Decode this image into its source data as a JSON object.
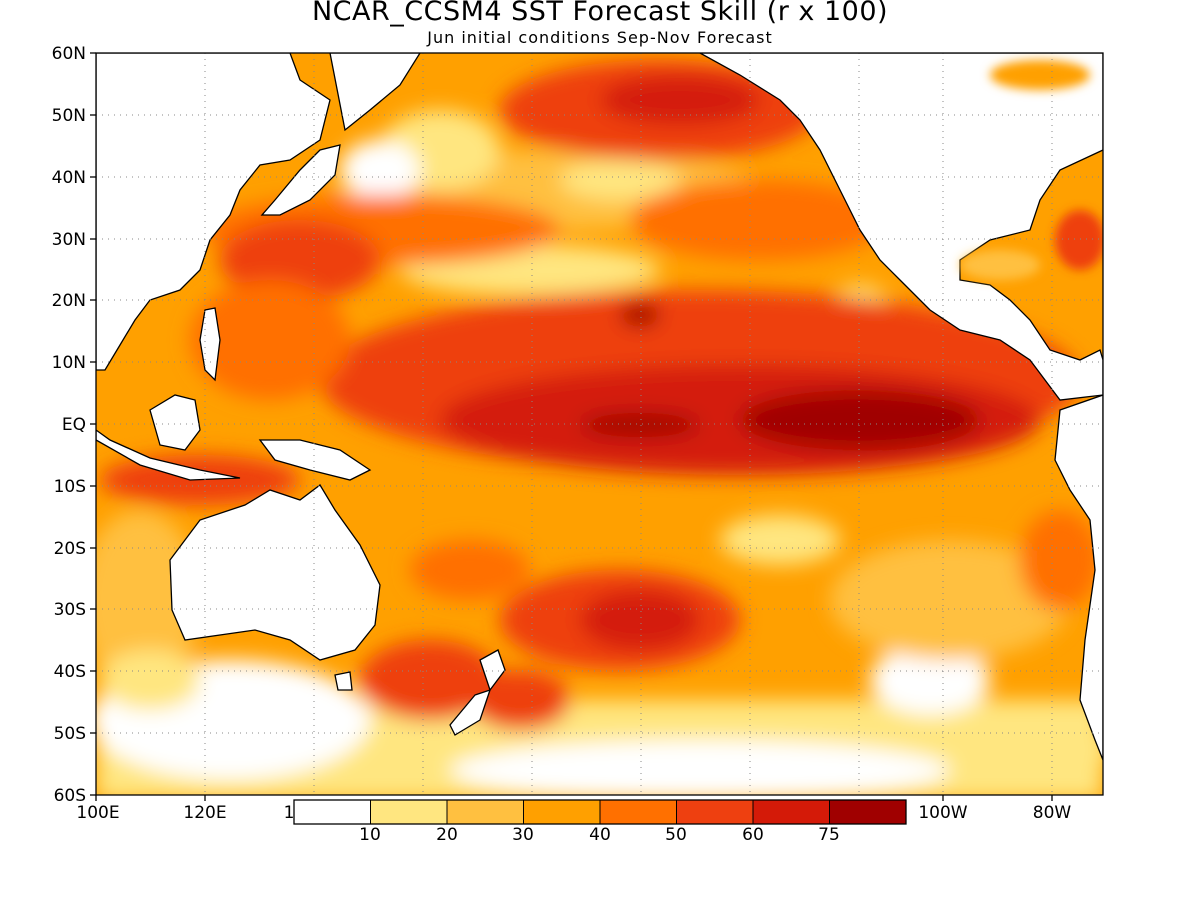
{
  "title": "NCAR_CCSM4 SST Forecast Skill (r x 100)",
  "subtitle": "Jun initial conditions  Sep-Nov Forecast",
  "map": {
    "lon_range": [
      100,
      285
    ],
    "lat_range": [
      -60,
      60
    ],
    "lat_ticks": [
      "60N",
      "50N",
      "40N",
      "30N",
      "20N",
      "10N",
      "EQ",
      "10S",
      "20S",
      "30S",
      "40S",
      "50S",
      "60S"
    ],
    "lon_ticks": [
      "100E",
      "120E",
      "1",
      "100W",
      "80W"
    ],
    "grid": true
  },
  "colorbar": {
    "labels": [
      "10",
      "20",
      "30",
      "40",
      "50",
      "60",
      "75"
    ],
    "colors": [
      "#ffffff",
      "#ffe680",
      "#ffc040",
      "#ffa000",
      "#ff7000",
      "#ee4010",
      "#d41a08",
      "#a00000"
    ]
  }
}
